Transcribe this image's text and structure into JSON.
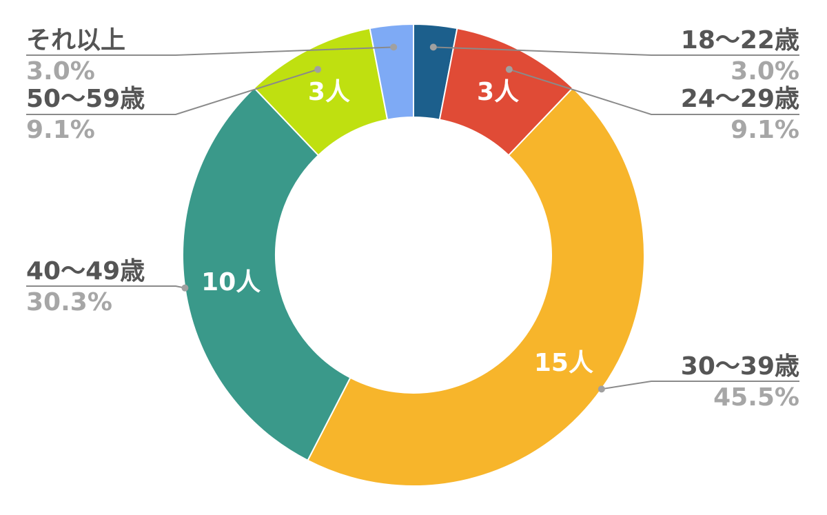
{
  "chart_data": {
    "type": "pie",
    "variant": "donut",
    "categories": [
      "18〜22歳",
      "24〜29歳",
      "30〜39歳",
      "40〜49歳",
      "50〜59歳",
      "それ以上"
    ],
    "values": [
      1,
      3,
      15,
      10,
      3,
      1
    ],
    "percent_labels": [
      "3.0%",
      "9.1%",
      "45.5%",
      "30.3%",
      "9.1%",
      "3.0%"
    ],
    "value_labels": [
      "",
      "3人",
      "15人",
      "10人",
      "3人",
      ""
    ],
    "colors": [
      "#1c5f8c",
      "#e04b36",
      "#f7b52b",
      "#3a998a",
      "#bfe010",
      "#7eaaf5"
    ],
    "legend": "callout labels",
    "start_angle": "12 o'clock, clockwise"
  }
}
